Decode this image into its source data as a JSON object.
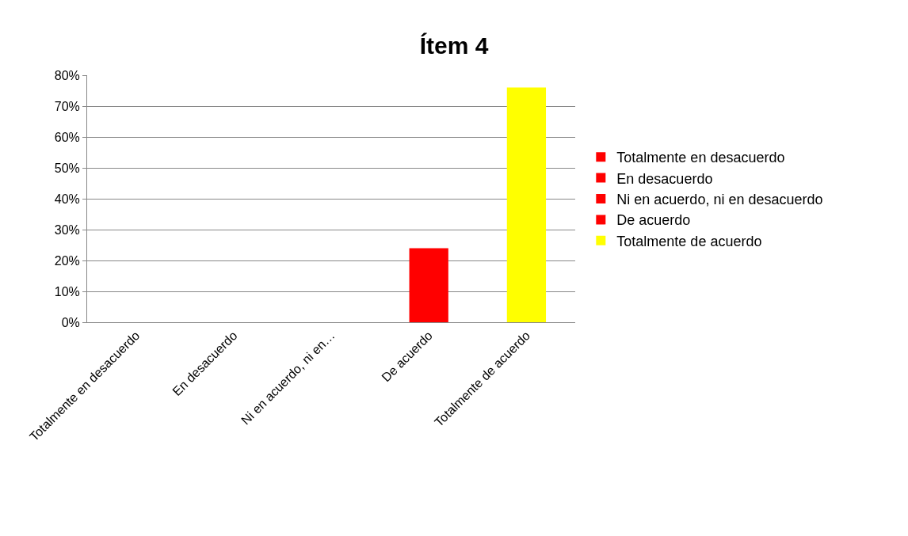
{
  "chart_data": {
    "type": "bar",
    "title": "Ítem 4",
    "categories": [
      "Totalmente en desacuerdo",
      "En desacuerdo",
      "Ni en acuerdo, ni en…",
      "De acuerdo",
      "Totalmente de acuerdo"
    ],
    "series": [
      {
        "name": "Totalmente en desacuerdo",
        "color": "#ff0000",
        "values": [
          0,
          null,
          null,
          null,
          null
        ]
      },
      {
        "name": "En desacuerdo",
        "color": "#ff0000",
        "values": [
          null,
          0,
          null,
          null,
          null
        ]
      },
      {
        "name": "Ni en acuerdo, ni en desacuerdo",
        "color": "#ff0000",
        "values": [
          null,
          null,
          0,
          null,
          null
        ]
      },
      {
        "name": "De acuerdo",
        "color": "#ff0000",
        "values": [
          null,
          null,
          null,
          24,
          null
        ]
      },
      {
        "name": "Totalmente de acuerdo",
        "color": "#ffff00",
        "values": [
          null,
          null,
          null,
          null,
          76
        ]
      }
    ],
    "ylim": [
      0,
      80
    ],
    "yticks": [
      {
        "value": 0,
        "label": "0%"
      },
      {
        "value": 10,
        "label": "10%"
      },
      {
        "value": 20,
        "label": "20%"
      },
      {
        "value": 30,
        "label": "30%"
      },
      {
        "value": 40,
        "label": "40%"
      },
      {
        "value": 50,
        "label": "50%"
      },
      {
        "value": 60,
        "label": "60%"
      },
      {
        "value": 70,
        "label": "70%"
      },
      {
        "value": 80,
        "label": "80%"
      }
    ],
    "grid": "y",
    "legend": "right"
  }
}
